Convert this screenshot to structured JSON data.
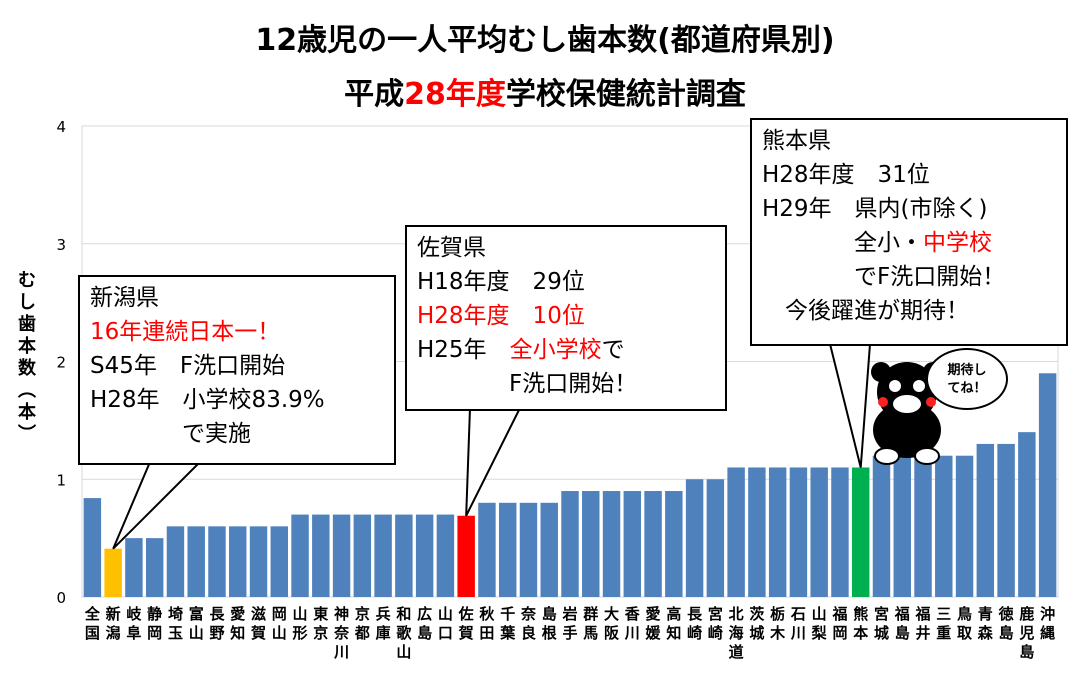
{
  "title": {
    "line1": "12歳児の一人平均むし歯本数(都道府県別)",
    "line2_pre": "平成",
    "line2_highlight": "28年度",
    "line2_post": "学校保健統計調査"
  },
  "colors": {
    "default": "#4f81bd",
    "niigata": "#ffc000",
    "saga": "#ff0000",
    "kumamoto": "#00b050",
    "highlight_text": "#ff0000"
  },
  "chart_data": {
    "type": "bar",
    "title": "12歳児の一人平均むし歯本数(都道府県別) 平成28年度学校保健統計調査",
    "ylabel": "むし歯本数(本)",
    "ylim": [
      0,
      4
    ],
    "yticks": [
      "0",
      "1",
      "2",
      "3",
      "4"
    ],
    "grid": true,
    "categories": [
      "全国",
      "新潟",
      "岐阜",
      "静岡",
      "埼玉",
      "富山",
      "長野",
      "愛知",
      "滋賀",
      "岡山",
      "山形",
      "東京",
      "神奈川",
      "京都",
      "兵庫",
      "和歌山",
      "広島",
      "山口",
      "佐賀",
      "秋田",
      "千葉",
      "奈良",
      "島根",
      "岩手",
      "群馬",
      "大阪",
      "香川",
      "愛媛",
      "高知",
      "長崎",
      "宮崎",
      "北海道",
      "茨城",
      "栃木",
      "石川",
      "山梨",
      "福岡",
      "熊本",
      "宮城",
      "福島",
      "福井",
      "三重",
      "鳥取",
      "青森",
      "徳島",
      "鹿児島",
      "沖縄"
    ],
    "values": [
      0.84,
      0.41,
      0.5,
      0.5,
      0.6,
      0.6,
      0.6,
      0.6,
      0.6,
      0.6,
      0.7,
      0.7,
      0.7,
      0.7,
      0.7,
      0.7,
      0.7,
      0.7,
      0.69,
      0.8,
      0.8,
      0.8,
      0.8,
      0.9,
      0.9,
      0.9,
      0.9,
      0.9,
      0.9,
      1.0,
      1.0,
      1.1,
      1.1,
      1.1,
      1.1,
      1.1,
      1.1,
      1.1,
      1.2,
      1.2,
      1.2,
      1.2,
      1.2,
      1.3,
      1.3,
      1.4,
      1.9
    ],
    "highlights": {
      "新潟": "niigata",
      "佐賀": "saga",
      "熊本": "kumamoto"
    }
  },
  "callouts": {
    "niigata": {
      "lines": [
        {
          "text": "新潟県",
          "color": "#000000"
        },
        {
          "text": "16年連続日本一！",
          "color": "#ff0000"
        },
        {
          "text": "S45年　F洗口開始",
          "color": "#000000"
        },
        {
          "text": "H28年　小学校83.9%",
          "color": "#000000"
        },
        {
          "text": "　　　　で実施",
          "color": "#000000"
        }
      ]
    },
    "saga": {
      "lines": [
        {
          "text": "佐賀県",
          "color": "#000000"
        },
        {
          "text": "H18年度　29位",
          "color": "#000000"
        },
        {
          "text": "H28年度　10位",
          "color": "#ff0000"
        },
        {
          "text": "H25年　<r>全小学校</r>で",
          "color": "#000000"
        },
        {
          "text": "　　　　F洗口開始！",
          "color": "#000000"
        }
      ]
    },
    "kumamoto": {
      "lines": [
        {
          "text": "熊本県",
          "color": "#000000"
        },
        {
          "text": "H28年度　31位",
          "color": "#000000"
        },
        {
          "text": "H29年　県内(市除く)",
          "color": "#000000"
        },
        {
          "text": "　　　　全小・<r>中学校</r>",
          "color": "#000000"
        },
        {
          "text": "　　　　でF洗口開始！",
          "color": "#000000"
        },
        {
          "text": "　今後躍進が期待！",
          "color": "#000000"
        }
      ]
    }
  },
  "mascot": {
    "speech": "期待し\nてね！"
  }
}
